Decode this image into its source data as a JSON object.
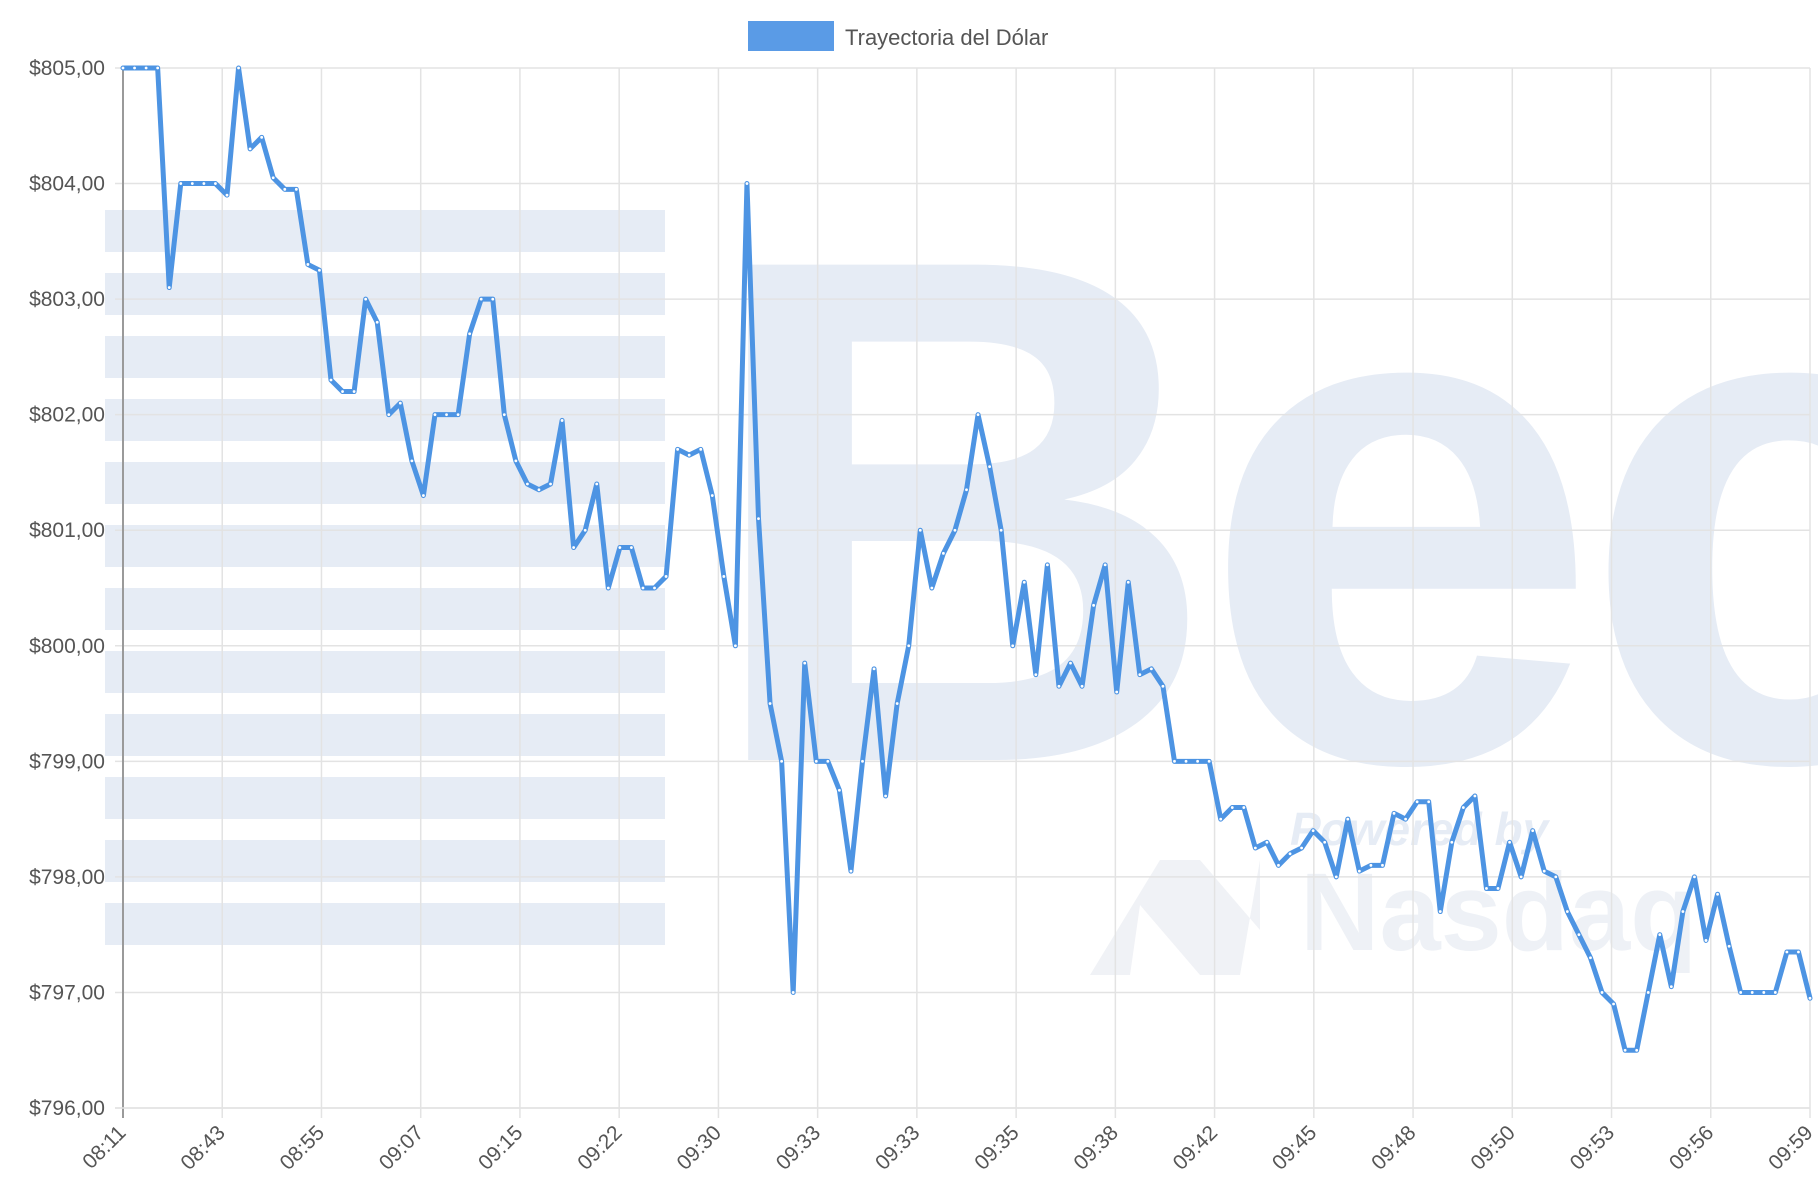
{
  "chart_data": {
    "type": "line",
    "legend": {
      "label": "Trayectoria del Dólar",
      "position": "top-center"
    },
    "colors": {
      "line": "#4d94e3",
      "legend_swatch": "#5a9be6",
      "grid": "#e3e3e3",
      "axis": "#9a9a9a",
      "watermark": "#e6ecf5"
    },
    "watermark": {
      "main": "Bec",
      "sub_small": "Powered by",
      "sub_large": "Nasdaq"
    },
    "y_axis": {
      "min": 796,
      "max": 805,
      "ticks": [
        "$805,00",
        "$804,00",
        "$803,00",
        "$802,00",
        "$801,00",
        "$800,00",
        "$799,00",
        "$798,00",
        "$797,00",
        "$796,00"
      ],
      "grid": true
    },
    "x_axis": {
      "ticks": [
        "08:11",
        "08:43",
        "08:55",
        "09:07",
        "09:15",
        "09:22",
        "09:30",
        "09:33",
        "09:33",
        "09:35",
        "09:38",
        "09:42",
        "09:45",
        "09:48",
        "09:50",
        "09:53",
        "09:56",
        "09:59"
      ],
      "grid": true
    },
    "series": [
      {
        "name": "Trayectoria del Dólar",
        "values": [
          805.0,
          805.0,
          805.0,
          805.0,
          803.1,
          804.0,
          804.0,
          804.0,
          804.0,
          803.9,
          805.0,
          804.3,
          804.4,
          804.05,
          803.95,
          803.95,
          803.3,
          803.25,
          802.3,
          802.2,
          802.2,
          803.0,
          802.8,
          802.0,
          802.1,
          801.6,
          801.3,
          802.0,
          802.0,
          802.0,
          802.7,
          803.0,
          803.0,
          802.0,
          801.6,
          801.4,
          801.35,
          801.4,
          801.95,
          800.85,
          801.0,
          801.4,
          800.5,
          800.85,
          800.85,
          800.5,
          800.5,
          800.6,
          801.7,
          801.65,
          801.7,
          801.3,
          800.6,
          800.0,
          804.0,
          801.1,
          799.5,
          799.0,
          797.0,
          799.85,
          799.0,
          799.0,
          798.75,
          798.05,
          799.0,
          799.8,
          798.7,
          799.5,
          800.0,
          801.0,
          800.5,
          800.8,
          801.0,
          801.35,
          802.0,
          801.55,
          801.0,
          800.0,
          800.55,
          799.75,
          800.7,
          799.65,
          799.85,
          799.65,
          800.35,
          800.7,
          799.6,
          800.55,
          799.75,
          799.8,
          799.65,
          799.0,
          799.0,
          799.0,
          799.0,
          798.5,
          798.6,
          798.6,
          798.25,
          798.3,
          798.1,
          798.2,
          798.25,
          798.4,
          798.3,
          798.0,
          798.5,
          798.05,
          798.1,
          798.1,
          798.55,
          798.5,
          798.65,
          798.65,
          797.7,
          798.3,
          798.6,
          798.7,
          797.9,
          797.9,
          798.3,
          798.0,
          798.4,
          798.05,
          798.0,
          797.7,
          797.5,
          797.3,
          797.0,
          796.9,
          796.5,
          796.5,
          797.0,
          797.5,
          797.05,
          797.7,
          798.0,
          797.45,
          797.85,
          797.4,
          797.0,
          797.0,
          797.0,
          797.0,
          797.35,
          797.35,
          796.95
        ]
      }
    ]
  }
}
